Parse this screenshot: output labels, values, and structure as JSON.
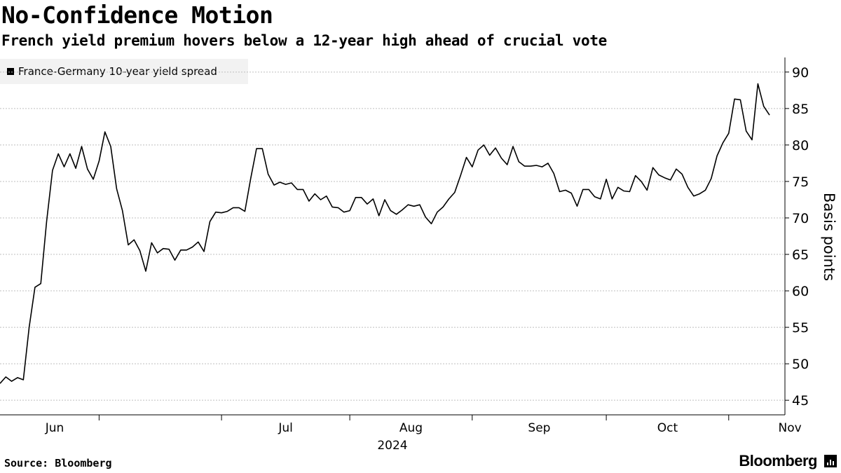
{
  "title": "No-Confidence Motion",
  "subtitle": "French yield premium hovers below a 12-year high ahead of crucial vote",
  "legend": {
    "label": "France-Germany 10-year yield spread"
  },
  "footer": {
    "source": "Source: Bloomberg",
    "brand": "Bloomberg"
  },
  "colors": {
    "line": "#000000",
    "grid": "#bfbfbf",
    "legend_bg": "#f2f2f2"
  },
  "chart_data": {
    "type": "line",
    "title": "No-Confidence Motion",
    "subtitle": "French yield premium hovers below a 12-year high ahead of crucial vote",
    "ylabel": "Basis points",
    "xlabel": "2024",
    "ylim": [
      43,
      92
    ],
    "yticks": [
      45,
      50,
      55,
      60,
      65,
      70,
      75,
      80,
      85,
      90
    ],
    "x_tick_labels": [
      "Jun",
      "Jul",
      "Aug",
      "Sep",
      "Oct",
      "Nov"
    ],
    "year_label": "2024",
    "grid": true,
    "legend_position": "top-left",
    "series": [
      {
        "name": "France-Germany 10-year yield spread",
        "values": [
          47.3,
          48.2,
          47.6,
          48.1,
          47.8,
          55.0,
          60.5,
          61.0,
          69.5,
          76.5,
          78.8,
          77.0,
          78.8,
          76.8,
          79.8,
          76.7,
          75.3,
          77.8,
          81.8,
          79.8,
          74.0,
          71.0,
          66.3,
          67.0,
          65.5,
          62.7,
          66.6,
          65.2,
          65.8,
          65.7,
          64.2,
          65.6,
          65.6,
          66.0,
          66.7,
          65.4,
          69.5,
          70.8,
          70.7,
          70.9,
          71.4,
          71.4,
          70.9,
          75.4,
          79.5,
          79.5,
          76.0,
          74.5,
          74.9,
          74.6,
          74.8,
          73.9,
          73.9,
          72.3,
          73.3,
          72.5,
          73.0,
          71.5,
          71.4,
          70.8,
          71.0,
          72.8,
          72.8,
          71.9,
          72.6,
          70.3,
          72.5,
          71.0,
          70.5,
          71.1,
          71.8,
          71.6,
          71.8,
          70.1,
          69.2,
          70.8,
          71.5,
          72.6,
          73.5,
          75.8,
          78.3,
          77.0,
          79.3,
          80.0,
          78.6,
          79.6,
          78.2,
          77.3,
          79.8,
          77.7,
          77.1,
          77.1,
          77.2,
          77.0,
          77.5,
          76.1,
          73.6,
          73.8,
          73.4,
          71.6,
          73.9,
          73.9,
          72.9,
          72.6,
          75.3,
          72.6,
          74.2,
          73.7,
          73.6,
          75.8,
          75.0,
          73.8,
          76.9,
          75.9,
          75.5,
          75.2,
          76.7,
          76.0,
          74.2,
          73.0,
          73.3,
          73.8,
          75.4,
          78.5,
          80.3,
          81.6,
          86.3,
          86.2,
          81.9,
          80.7,
          88.4,
          85.3,
          84.1
        ]
      }
    ]
  }
}
